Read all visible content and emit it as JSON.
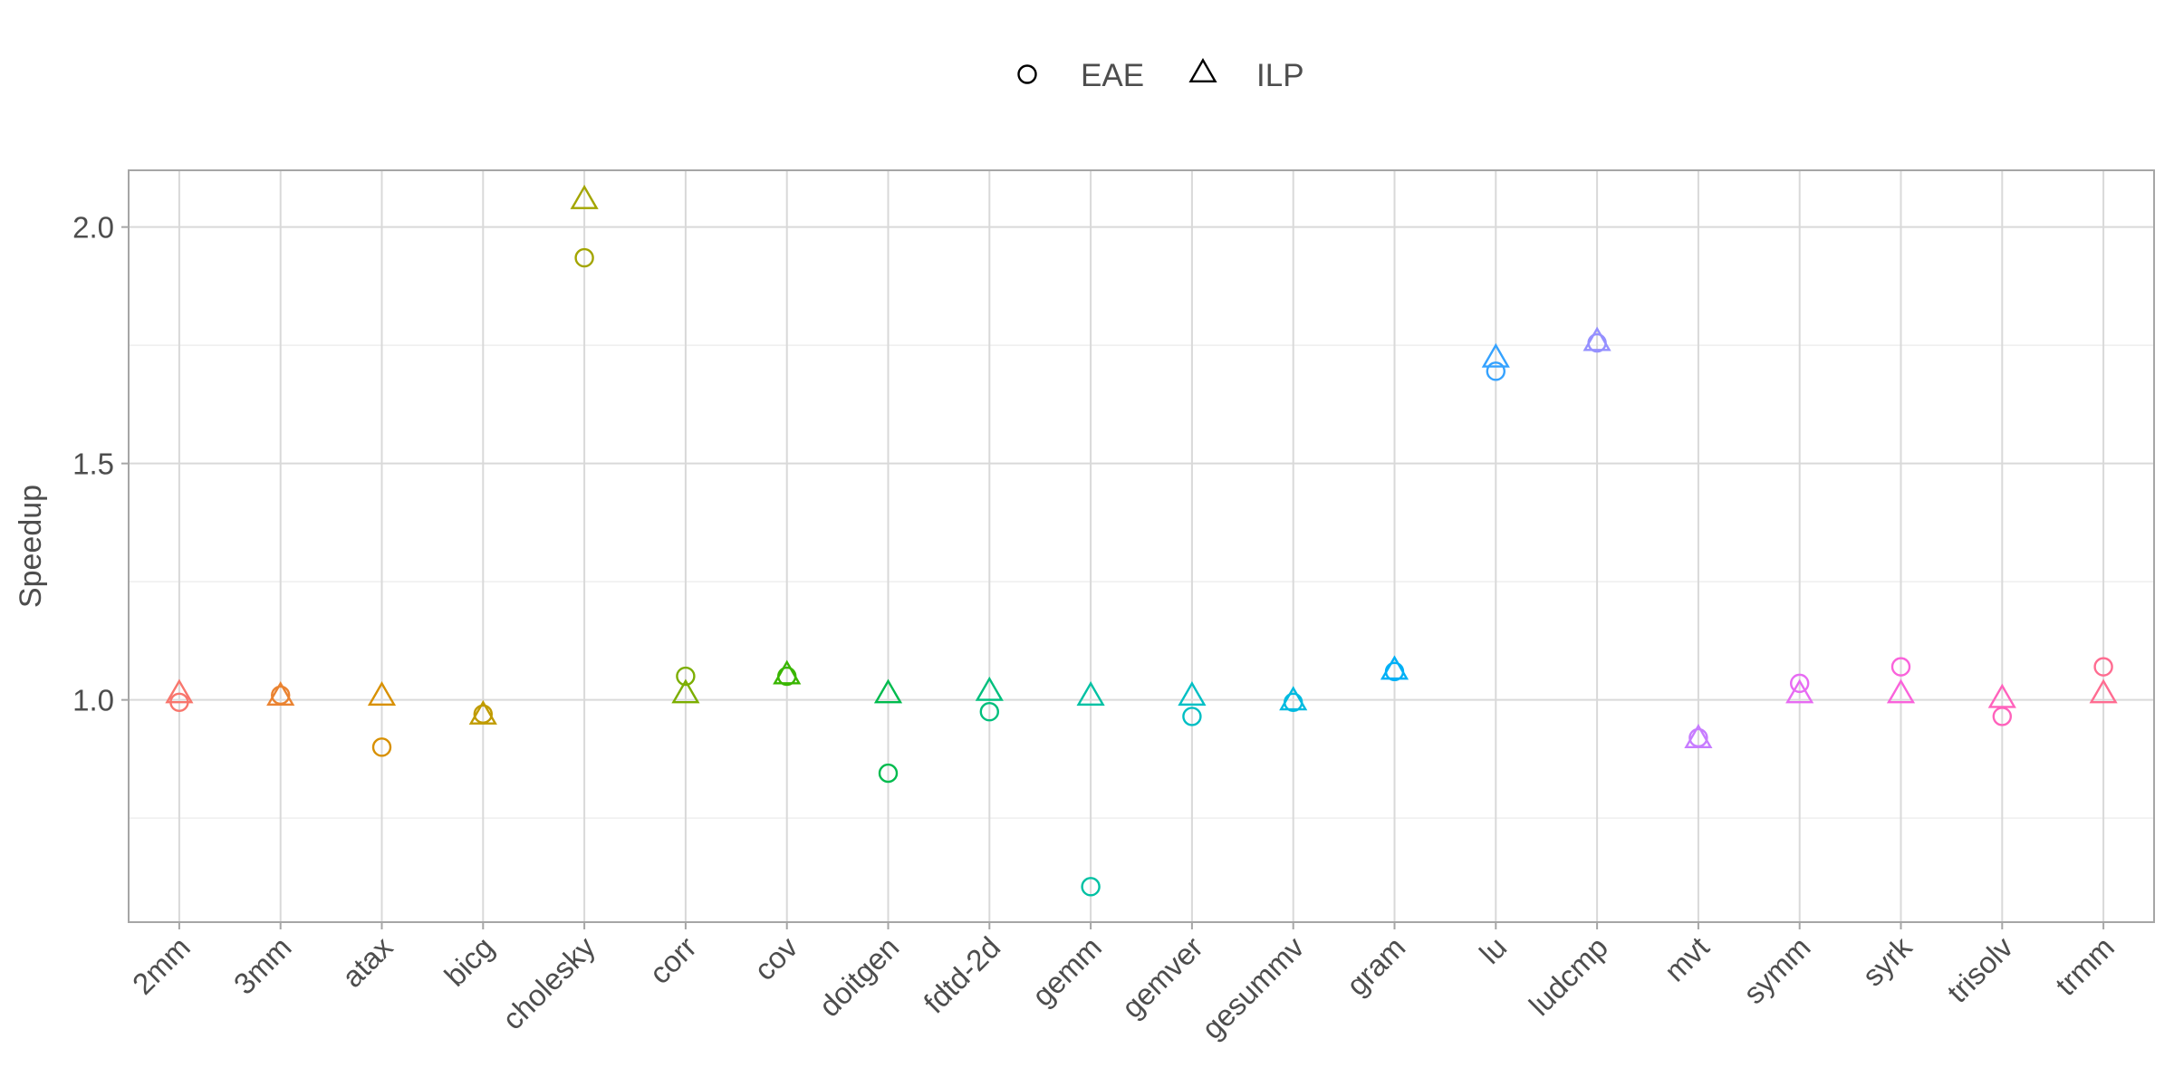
{
  "chart_data": {
    "type": "scatter",
    "title": "",
    "xlabel": "",
    "ylabel": "Speedup",
    "ylim": [
      0.53,
      2.12
    ],
    "y_ticks": [
      "1.0",
      "1.5",
      "2.0"
    ],
    "grid": true,
    "legend_position": "top",
    "categories": [
      "2mm",
      "3mm",
      "atax",
      "bicg",
      "cholesky",
      "corr",
      "cov",
      "doitgen",
      "fdtd-2d",
      "gemm",
      "gemver",
      "gesummv",
      "gram",
      "lu",
      "ludcmp",
      "mvt",
      "symm",
      "syrk",
      "trisolv",
      "trmm"
    ],
    "category_colors": [
      "#F8766D",
      "#EA8331",
      "#D89000",
      "#C09B00",
      "#A3A500",
      "#7CAE00",
      "#39B600",
      "#00BB4E",
      "#00BF7D",
      "#00C1A3",
      "#00BFC4",
      "#00BAE0",
      "#00B0F6",
      "#35A2FF",
      "#9590FF",
      "#C77CFF",
      "#E76BF3",
      "#FA62DB",
      "#FF62BC",
      "#FF6C91"
    ],
    "series": [
      {
        "name": "EAE",
        "marker": "circle",
        "values": [
          0.995,
          1.01,
          0.9,
          0.97,
          1.935,
          1.05,
          1.05,
          0.845,
          0.975,
          0.605,
          0.965,
          0.995,
          1.06,
          1.695,
          1.755,
          0.92,
          1.035,
          1.07,
          0.965,
          1.07
        ]
      },
      {
        "name": "ILP",
        "marker": "triangle",
        "values": [
          1.01,
          1.005,
          1.005,
          0.965,
          2.055,
          1.01,
          1.05,
          1.01,
          1.015,
          1.005,
          1.005,
          0.995,
          1.06,
          1.72,
          1.755,
          0.915,
          1.01,
          1.01,
          1.0,
          1.01
        ]
      }
    ]
  }
}
